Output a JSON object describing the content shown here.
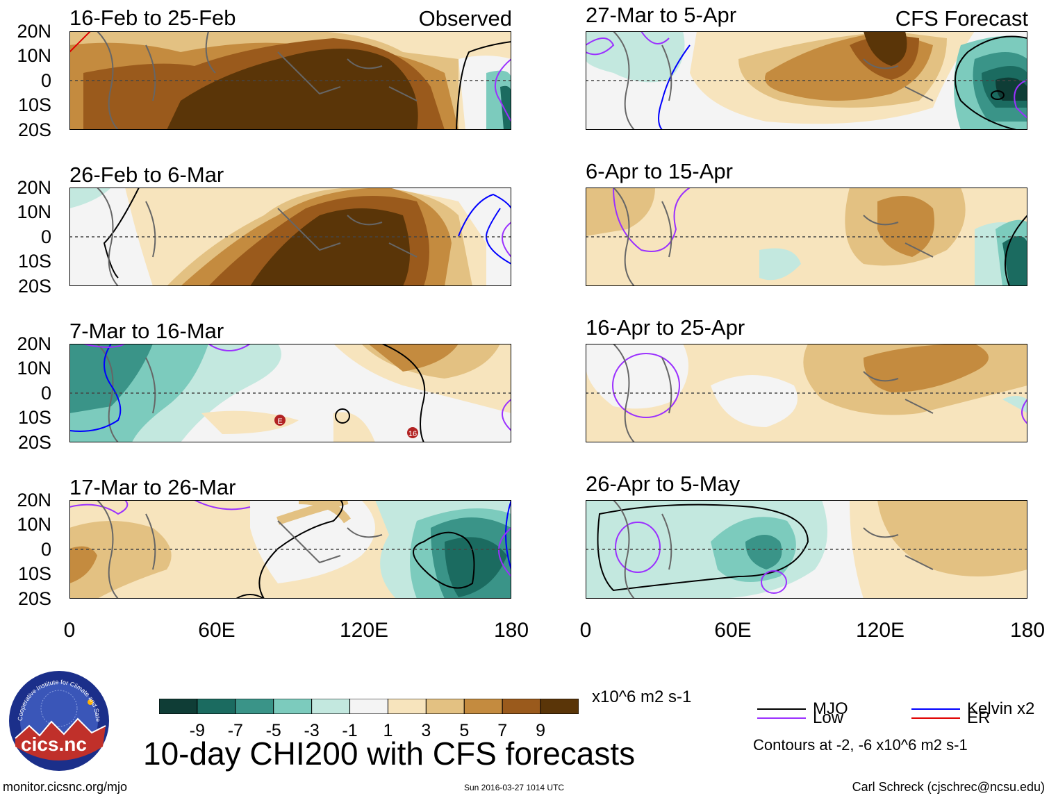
{
  "panels": [
    {
      "title": "16-Feb to 25-Feb",
      "label": "Observed"
    },
    {
      "title": "26-Feb to 6-Mar",
      "label": ""
    },
    {
      "title": "7-Mar to 16-Mar",
      "label": ""
    },
    {
      "title": "17-Mar to 26-Mar",
      "label": ""
    },
    {
      "title": "27-Mar to 5-Apr",
      "label": "CFS Forecast"
    },
    {
      "title": "6-Apr to 15-Apr",
      "label": ""
    },
    {
      "title": "16-Apr to 25-Apr",
      "label": ""
    },
    {
      "title": "26-Apr to 5-May",
      "label": ""
    }
  ],
  "lat_labels": [
    "20N",
    "10N",
    "0",
    "10S",
    "20S"
  ],
  "lon_labels": [
    "0",
    "60E",
    "120E",
    "180"
  ],
  "colorbar": {
    "colors": [
      "#0f3d36",
      "#1b6b60",
      "#3a9488",
      "#7ccbbd",
      "#c3e8df",
      "#f4f4f4",
      "#f7e4bd",
      "#e3c182",
      "#c48b3f",
      "#9a5a1c",
      "#5a3508"
    ],
    "ticks": [
      "-9",
      "-7",
      "-5",
      "-3",
      "-1",
      "1",
      "3",
      "5",
      "7",
      "9"
    ],
    "units": "x10^6 m2 s-1"
  },
  "legend": {
    "items": [
      {
        "label": "MJO",
        "color": "#000000"
      },
      {
        "label": "Kelvin x2",
        "color": "#0000ff"
      },
      {
        "label": "Low",
        "color": "#9b30ff"
      },
      {
        "label": "ER",
        "color": "#e00000"
      }
    ],
    "contours_note": "Contours at -2, -6 x10^6 m2 s-1"
  },
  "storm_markers": [
    "E",
    "16"
  ],
  "main_title": "10-day CHI200 with CFS forecasts",
  "logo": {
    "text": "cics.nc",
    "ring_text": "Cooperative Institute for Climate and Satellites"
  },
  "footer": {
    "url": "monitor.cicsnc.org/mjo",
    "date": "Sun 2016-03-27 1014 UTC",
    "author": "Carl Schreck (cjschrec@ncsu.edu)"
  }
}
